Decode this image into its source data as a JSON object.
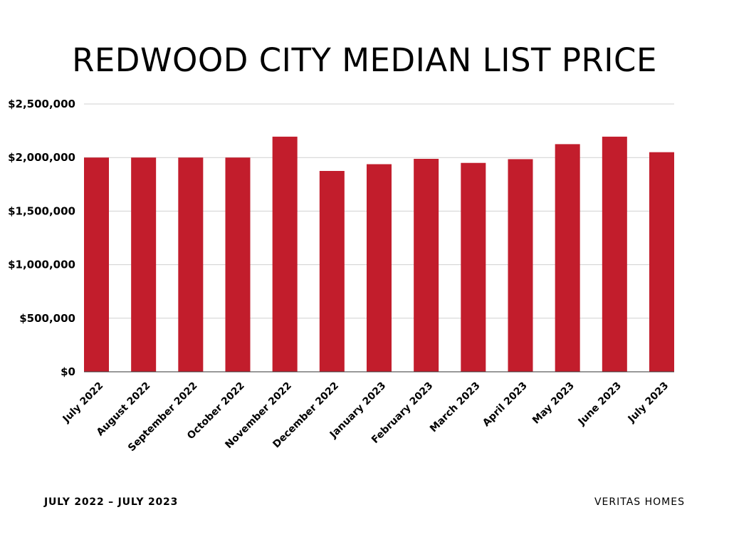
{
  "colors": {
    "bar": "#c21d2c",
    "grid": "#d0d0d0",
    "axis": "#333333",
    "text": "#000000"
  },
  "footer": {
    "date_range": "JULY 2022 – JULY 2023",
    "brand": "VERITAS HOMES"
  },
  "chart_data": {
    "type": "bar",
    "title": "REDWOOD CITY MEDIAN LIST PRICE",
    "categories": [
      "July 2022",
      "August 2022",
      "September 2022",
      "October 2022",
      "November 2022",
      "December 2022",
      "January 2023",
      "February 2023",
      "March 2023",
      "April 2023",
      "May 2023",
      "June 2023",
      "July 2023"
    ],
    "values": [
      2000000,
      2000000,
      2000000,
      2000000,
      2195000,
      1875000,
      1938000,
      1988000,
      1950000,
      1985000,
      2125000,
      2195000,
      2050000
    ],
    "yticks": [
      0,
      500000,
      1000000,
      1500000,
      2000000,
      2500000
    ],
    "ytick_labels": [
      "$0",
      "$500,000",
      "$1,000,000",
      "$1,500,000",
      "$2,000,000",
      "$2,500,000"
    ],
    "ylim": [
      0,
      2500000
    ],
    "grid": true,
    "legend": "none"
  }
}
